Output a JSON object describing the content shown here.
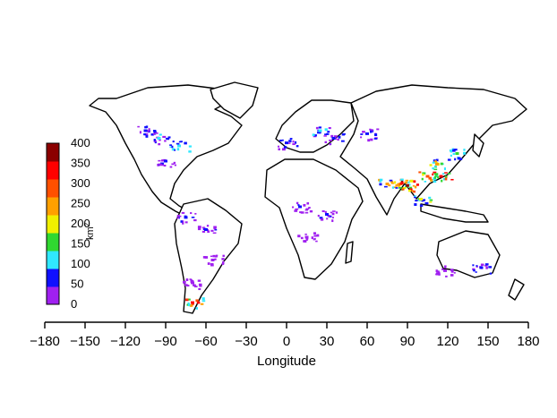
{
  "chart_data": {
    "type": "heatmap",
    "title": "",
    "xlabel": "Longitude",
    "ylabel": "",
    "xlim": [
      -180,
      180
    ],
    "ylim": [
      -60,
      90
    ],
    "x_ticks": [
      "−180",
      "−150",
      "−120",
      "−90",
      "−60",
      "−30",
      "0",
      "30",
      "60",
      "90",
      "120",
      "150",
      "180"
    ],
    "x_tick_values": [
      -180,
      -150,
      -120,
      -90,
      -60,
      -30,
      0,
      30,
      60,
      90,
      120,
      150,
      180
    ],
    "colorbar": {
      "unit_label": "km",
      "unit_exponent": "2",
      "ticks": [
        "0",
        "50",
        "100",
        "150",
        "200",
        "250",
        "300",
        "350",
        "400"
      ],
      "tick_values": [
        0,
        50,
        100,
        150,
        200,
        250,
        300,
        350,
        400
      ],
      "colors": [
        "#a020f0",
        "#1010ff",
        "#30e8ff",
        "#30d830",
        "#f0f000",
        "#ffa000",
        "#ff5000",
        "#ff0000",
        "#8b0000"
      ]
    },
    "hotspots": [
      {
        "lon": -95,
        "lat": 55,
        "value": 100
      },
      {
        "lon": -80,
        "lat": 50,
        "value": 120
      },
      {
        "lon": -105,
        "lat": 60,
        "value": 80
      },
      {
        "lon": -90,
        "lat": 40,
        "value": 60
      },
      {
        "lon": -60,
        "lat": -5,
        "value": 50
      },
      {
        "lon": -75,
        "lat": 3,
        "value": 60
      },
      {
        "lon": -55,
        "lat": -25,
        "value": 40
      },
      {
        "lon": -70,
        "lat": -40,
        "value": 40
      },
      {
        "lon": -70,
        "lat": -53,
        "value": 350
      },
      {
        "lon": 25,
        "lat": 60,
        "value": 100
      },
      {
        "lon": 35,
        "lat": 55,
        "value": 60
      },
      {
        "lon": 60,
        "lat": 58,
        "value": 60
      },
      {
        "lon": 75,
        "lat": 25,
        "value": 250
      },
      {
        "lon": 85,
        "lat": 25,
        "value": 300
      },
      {
        "lon": 90,
        "lat": 24,
        "value": 400
      },
      {
        "lon": 105,
        "lat": 30,
        "value": 300
      },
      {
        "lon": 115,
        "lat": 30,
        "value": 350
      },
      {
        "lon": 112,
        "lat": 38,
        "value": 250
      },
      {
        "lon": 100,
        "lat": 15,
        "value": 200
      },
      {
        "lon": 127,
        "lat": 45,
        "value": 150
      },
      {
        "lon": 30,
        "lat": 5,
        "value": 50
      },
      {
        "lon": 15,
        "lat": -10,
        "value": 40
      },
      {
        "lon": 10,
        "lat": 10,
        "value": 50
      },
      {
        "lon": 145,
        "lat": -30,
        "value": 60
      },
      {
        "lon": 118,
        "lat": -32,
        "value": 40
      },
      {
        "lon": 0,
        "lat": 52,
        "value": 80
      }
    ]
  }
}
